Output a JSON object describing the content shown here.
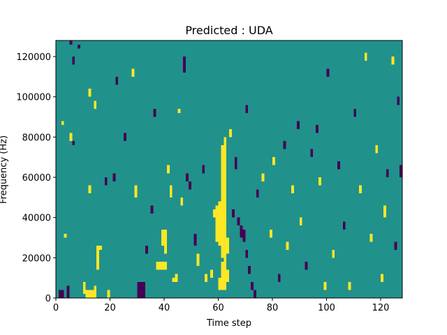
{
  "chart_data": {
    "type": "heatmap",
    "title": "Predicted : UDA",
    "xlabel": "Time step",
    "ylabel": "Frequency (Hz)",
    "xlim": [
      0,
      128
    ],
    "ylim": [
      0,
      128000
    ],
    "x_ticks": [
      0,
      20,
      40,
      60,
      80,
      100,
      120
    ],
    "y_ticks": [
      0,
      20000,
      40000,
      60000,
      80000,
      100000,
      120000
    ],
    "grid": false,
    "colors": {
      "background": "#21918c",
      "low": "#440154",
      "high": "#fde725"
    },
    "n_bins_y": 64,
    "bin_height_hz": 2000,
    "cells": [
      {
        "x": 1,
        "y0": 0,
        "y1": 4000,
        "v": "low"
      },
      {
        "x": 2,
        "y0": 0,
        "y1": 4000,
        "v": "low"
      },
      {
        "x": 3,
        "y0": 30000,
        "y1": 32000,
        "v": "high"
      },
      {
        "x": 2,
        "y0": 86000,
        "y1": 88000,
        "v": "high"
      },
      {
        "x": 4,
        "y0": 0,
        "y1": 6000,
        "v": "low"
      },
      {
        "x": 5,
        "y0": 78000,
        "y1": 82000,
        "v": "high"
      },
      {
        "x": 6,
        "y0": 76000,
        "y1": 78000,
        "v": "low"
      },
      {
        "x": 5,
        "y0": 126000,
        "y1": 128000,
        "v": "low"
      },
      {
        "x": 6,
        "y0": 116000,
        "y1": 120000,
        "v": "low"
      },
      {
        "x": 8,
        "y0": 124000,
        "y1": 126000,
        "v": "low"
      },
      {
        "x": 10,
        "y0": 2000,
        "y1": 8000,
        "v": "high"
      },
      {
        "x": 11,
        "y0": 0,
        "y1": 4000,
        "v": "high"
      },
      {
        "x": 12,
        "y0": 0,
        "y1": 4000,
        "v": "high"
      },
      {
        "x": 13,
        "y0": 0,
        "y1": 4000,
        "v": "high"
      },
      {
        "x": 14,
        "y0": 0,
        "y1": 6000,
        "v": "high"
      },
      {
        "x": 15,
        "y0": 14000,
        "y1": 26000,
        "v": "high"
      },
      {
        "x": 16,
        "y0": 24000,
        "y1": 26000,
        "v": "high"
      },
      {
        "x": 12,
        "y0": 100000,
        "y1": 104000,
        "v": "high"
      },
      {
        "x": 14,
        "y0": 94000,
        "y1": 98000,
        "v": "high"
      },
      {
        "x": 12,
        "y0": 52000,
        "y1": 56000,
        "v": "high"
      },
      {
        "x": 18,
        "y0": 56000,
        "y1": 60000,
        "v": "low"
      },
      {
        "x": 19,
        "y0": 0,
        "y1": 4000,
        "v": "high"
      },
      {
        "x": 21,
        "y0": 58000,
        "y1": 62000,
        "v": "low"
      },
      {
        "x": 22,
        "y0": 106000,
        "y1": 110000,
        "v": "low"
      },
      {
        "x": 25,
        "y0": 78000,
        "y1": 82000,
        "v": "low"
      },
      {
        "x": 28,
        "y0": 110000,
        "y1": 114000,
        "v": "high"
      },
      {
        "x": 29,
        "y0": 50000,
        "y1": 56000,
        "v": "high"
      },
      {
        "x": 30,
        "y0": 0,
        "y1": 8000,
        "v": "low"
      },
      {
        "x": 31,
        "y0": 0,
        "y1": 8000,
        "v": "low"
      },
      {
        "x": 32,
        "y0": 0,
        "y1": 8000,
        "v": "low"
      },
      {
        "x": 33,
        "y0": 22000,
        "y1": 26000,
        "v": "low"
      },
      {
        "x": 35,
        "y0": 42000,
        "y1": 46000,
        "v": "low"
      },
      {
        "x": 36,
        "y0": 90000,
        "y1": 94000,
        "v": "low"
      },
      {
        "x": 37,
        "y0": 14000,
        "y1": 18000,
        "v": "high"
      },
      {
        "x": 38,
        "y0": 14000,
        "y1": 18000,
        "v": "high"
      },
      {
        "x": 39,
        "y0": 14000,
        "y1": 18000,
        "v": "high"
      },
      {
        "x": 40,
        "y0": 14000,
        "y1": 18000,
        "v": "high"
      },
      {
        "x": 39,
        "y0": 26000,
        "y1": 34000,
        "v": "high"
      },
      {
        "x": 40,
        "y0": 22000,
        "y1": 34000,
        "v": "high"
      },
      {
        "x": 41,
        "y0": 62000,
        "y1": 66000,
        "v": "high"
      },
      {
        "x": 42,
        "y0": 50000,
        "y1": 56000,
        "v": "high"
      },
      {
        "x": 43,
        "y0": 8000,
        "y1": 10000,
        "v": "high"
      },
      {
        "x": 44,
        "y0": 8000,
        "y1": 12000,
        "v": "high"
      },
      {
        "x": 45,
        "y0": 92000,
        "y1": 94000,
        "v": "high"
      },
      {
        "x": 46,
        "y0": 46000,
        "y1": 50000,
        "v": "high"
      },
      {
        "x": 47,
        "y0": 112000,
        "y1": 120000,
        "v": "low"
      },
      {
        "x": 48,
        "y0": 58000,
        "y1": 62000,
        "v": "low"
      },
      {
        "x": 49,
        "y0": 54000,
        "y1": 58000,
        "v": "low"
      },
      {
        "x": 51,
        "y0": 26000,
        "y1": 32000,
        "v": "low"
      },
      {
        "x": 52,
        "y0": 16000,
        "y1": 22000,
        "v": "high"
      },
      {
        "x": 54,
        "y0": 62000,
        "y1": 66000,
        "v": "low"
      },
      {
        "x": 55,
        "y0": 8000,
        "y1": 12000,
        "v": "high"
      },
      {
        "x": 57,
        "y0": 10000,
        "y1": 14000,
        "v": "high"
      },
      {
        "x": 58,
        "y0": 40000,
        "y1": 44000,
        "v": "high"
      },
      {
        "x": 59,
        "y0": 28000,
        "y1": 46000,
        "v": "high"
      },
      {
        "x": 60,
        "y0": 26000,
        "y1": 48000,
        "v": "high"
      },
      {
        "x": 61,
        "y0": 20000,
        "y1": 76000,
        "v": "high"
      },
      {
        "x": 62,
        "y0": 18000,
        "y1": 80000,
        "v": "high"
      },
      {
        "x": 63,
        "y0": 22000,
        "y1": 30000,
        "v": "high"
      },
      {
        "x": 61,
        "y0": 4000,
        "y1": 18000,
        "v": "high"
      },
      {
        "x": 62,
        "y0": 4000,
        "y1": 18000,
        "v": "high"
      },
      {
        "x": 60,
        "y0": 4000,
        "y1": 10000,
        "v": "high"
      },
      {
        "x": 63,
        "y0": 8000,
        "y1": 14000,
        "v": "high"
      },
      {
        "x": 64,
        "y0": 80000,
        "y1": 84000,
        "v": "high"
      },
      {
        "x": 65,
        "y0": 40000,
        "y1": 44000,
        "v": "low"
      },
      {
        "x": 66,
        "y0": 64000,
        "y1": 70000,
        "v": "low"
      },
      {
        "x": 67,
        "y0": 36000,
        "y1": 40000,
        "v": "low"
      },
      {
        "x": 68,
        "y0": 30000,
        "y1": 36000,
        "v": "low"
      },
      {
        "x": 69,
        "y0": 28000,
        "y1": 34000,
        "v": "low"
      },
      {
        "x": 70,
        "y0": 20000,
        "y1": 24000,
        "v": "low"
      },
      {
        "x": 71,
        "y0": 12000,
        "y1": 16000,
        "v": "low"
      },
      {
        "x": 72,
        "y0": 4000,
        "y1": 8000,
        "v": "low"
      },
      {
        "x": 73,
        "y0": 0,
        "y1": 4000,
        "v": "low"
      },
      {
        "x": 70,
        "y0": 92000,
        "y1": 96000,
        "v": "low"
      },
      {
        "x": 74,
        "y0": 50000,
        "y1": 54000,
        "v": "low"
      },
      {
        "x": 76,
        "y0": 58000,
        "y1": 62000,
        "v": "high"
      },
      {
        "x": 79,
        "y0": 30000,
        "y1": 34000,
        "v": "high"
      },
      {
        "x": 80,
        "y0": 66000,
        "y1": 70000,
        "v": "high"
      },
      {
        "x": 82,
        "y0": 8000,
        "y1": 12000,
        "v": "low"
      },
      {
        "x": 84,
        "y0": 74000,
        "y1": 78000,
        "v": "low"
      },
      {
        "x": 85,
        "y0": 24000,
        "y1": 28000,
        "v": "high"
      },
      {
        "x": 87,
        "y0": 52000,
        "y1": 56000,
        "v": "high"
      },
      {
        "x": 89,
        "y0": 84000,
        "y1": 88000,
        "v": "low"
      },
      {
        "x": 90,
        "y0": 36000,
        "y1": 40000,
        "v": "high"
      },
      {
        "x": 92,
        "y0": 14000,
        "y1": 18000,
        "v": "low"
      },
      {
        "x": 94,
        "y0": 70000,
        "y1": 74000,
        "v": "low"
      },
      {
        "x": 96,
        "y0": 82000,
        "y1": 86000,
        "v": "low"
      },
      {
        "x": 97,
        "y0": 56000,
        "y1": 60000,
        "v": "high"
      },
      {
        "x": 99,
        "y0": 4000,
        "y1": 8000,
        "v": "high"
      },
      {
        "x": 100,
        "y0": 110000,
        "y1": 114000,
        "v": "low"
      },
      {
        "x": 102,
        "y0": 20000,
        "y1": 24000,
        "v": "high"
      },
      {
        "x": 104,
        "y0": 64000,
        "y1": 68000,
        "v": "low"
      },
      {
        "x": 106,
        "y0": 34000,
        "y1": 38000,
        "v": "low"
      },
      {
        "x": 108,
        "y0": 4000,
        "y1": 8000,
        "v": "high"
      },
      {
        "x": 110,
        "y0": 90000,
        "y1": 94000,
        "v": "low"
      },
      {
        "x": 112,
        "y0": 52000,
        "y1": 56000,
        "v": "high"
      },
      {
        "x": 114,
        "y0": 118000,
        "y1": 122000,
        "v": "high"
      },
      {
        "x": 116,
        "y0": 28000,
        "y1": 32000,
        "v": "high"
      },
      {
        "x": 118,
        "y0": 72000,
        "y1": 76000,
        "v": "high"
      },
      {
        "x": 120,
        "y0": 8000,
        "y1": 12000,
        "v": "high"
      },
      {
        "x": 121,
        "y0": 40000,
        "y1": 46000,
        "v": "high"
      },
      {
        "x": 122,
        "y0": 60000,
        "y1": 64000,
        "v": "low"
      },
      {
        "x": 124,
        "y0": 116000,
        "y1": 120000,
        "v": "high"
      },
      {
        "x": 125,
        "y0": 24000,
        "y1": 28000,
        "v": "low"
      },
      {
        "x": 126,
        "y0": 96000,
        "y1": 100000,
        "v": "low"
      },
      {
        "x": 127,
        "y0": 60000,
        "y1": 66000,
        "v": "low"
      }
    ]
  }
}
